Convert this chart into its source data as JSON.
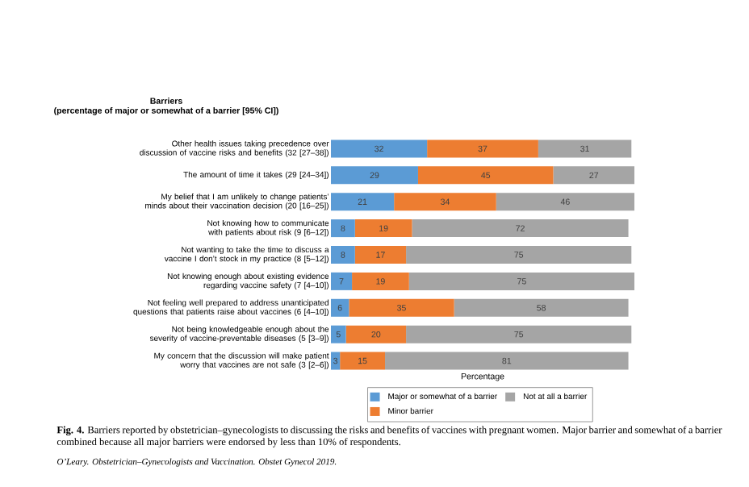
{
  "chart_data": {
    "type": "bar",
    "orientation": "horizontal",
    "stacked": true,
    "data_labels": true,
    "legend": "bottom",
    "title": "Barriers",
    "subtitle": "(percentage of major or somewhat of a barrier [95% CI])",
    "xlabel": "Percentage",
    "categories": [
      "Other health issues taking precedence over discussion of vaccine risks and benefits (32 [27–38])",
      "The amount of time it takes (29 [24–34])",
      "My belief that I am unlikely to change patients’ minds about their vaccination decision (20 [16–25])",
      "Not knowing how to communicate with patients about risk (9 [6–12])",
      "Not wanting to take the time to discuss a vaccine I don’t stock in my practice (8 [5–12])",
      "Not knowing enough about existing evidence regarding vaccine safety (7 [4–10])",
      "Not feeling well prepared to address unanticipated questions that patients raise about vaccines (6 [4–10])",
      "Not being knowledgeable enough about the severity of vaccine-preventable diseases (5 [3–9])",
      "My concern that the discussion will make patient worry that vaccines are not safe (3 [2–6])"
    ],
    "series": [
      {
        "name": "Major or somewhat of a barrier",
        "color": "#5b9bd5",
        "values": [
          32,
          29,
          21,
          8,
          8,
          7,
          6,
          5,
          3
        ]
      },
      {
        "name": "Minor barrier",
        "color": "#ed7d31",
        "values": [
          37,
          45,
          34,
          19,
          17,
          19,
          35,
          20,
          15
        ]
      },
      {
        "name": "Not at all a barrier",
        "color": "#a5a5a5",
        "values": [
          31,
          27,
          46,
          72,
          75,
          75,
          58,
          75,
          81
        ]
      }
    ],
    "annotations": [
      "**Fig. 4.** Barriers reported by obstetrician–gynecologists to discussing the risks and benefits of vaccines with pregnant women. Major barrier and somewhat of a barrier combined because all major barriers were endorsed by less than 10% of respondents.",
      "O’Leary. Obstetrician–Gynecologists and Vaccination. Obstet Gynecol 2019."
    ]
  }
}
